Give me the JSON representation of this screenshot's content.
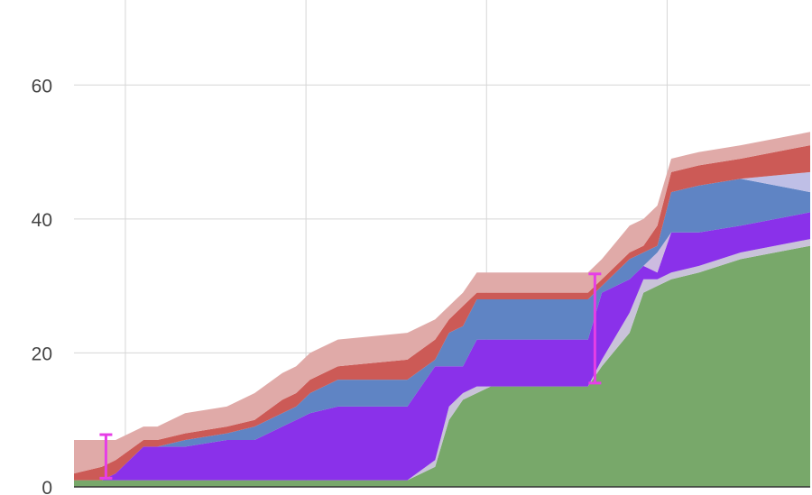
{
  "chart_data": {
    "type": "area",
    "stacked": true,
    "title": "",
    "xlabel": "",
    "ylabel": "",
    "ylim": [
      0,
      70
    ],
    "xlim": [
      0,
      53
    ],
    "grid": true,
    "legend": "none",
    "yticks": [
      {
        "value": 0,
        "label": "0"
      },
      {
        "value": 20,
        "label": "20"
      },
      {
        "value": 40,
        "label": "40"
      },
      {
        "value": 60,
        "label": "60"
      }
    ],
    "vertical_gridlines_x": [
      3.7,
      16.7,
      29.7,
      42.7
    ],
    "x": [
      0,
      2,
      3,
      5,
      6,
      8,
      11,
      13,
      15,
      16,
      17,
      19,
      24,
      26,
      27,
      28,
      29,
      30,
      32,
      37,
      38,
      40,
      41,
      42,
      43,
      45,
      48,
      53
    ],
    "series": [
      {
        "color": "#78a86a",
        "values": [
          1,
          1,
          1,
          1,
          1,
          1,
          1,
          1,
          1,
          1,
          1,
          1,
          1,
          3,
          10,
          13,
          14,
          15,
          15,
          15,
          18,
          23,
          29,
          30,
          31,
          32,
          34,
          36
        ]
      },
      {
        "color": "#c9c3d9",
        "values": [
          0,
          0,
          0,
          0,
          0,
          0,
          0,
          0,
          0,
          0,
          0,
          0,
          0,
          1,
          2,
          1,
          1,
          0,
          0,
          0,
          1,
          3,
          2,
          1,
          1,
          1,
          1,
          1
        ]
      },
      {
        "color": "#8a31ea",
        "values": [
          0,
          0,
          1,
          5,
          5,
          5,
          6,
          6,
          8,
          9,
          10,
          11,
          11,
          14,
          6,
          4,
          7,
          7,
          7,
          7,
          10,
          5,
          2,
          1,
          6,
          5,
          4,
          4
        ]
      },
      {
        "color": "#cdbbe0",
        "values": [
          0,
          0,
          0,
          0,
          0,
          0,
          0,
          0,
          0,
          0,
          0,
          0,
          0,
          0,
          0,
          0,
          0,
          0,
          0,
          0,
          0,
          0,
          0,
          3,
          0,
          0,
          0,
          0
        ]
      },
      {
        "color": "#5f84c4",
        "values": [
          0,
          0,
          0,
          0,
          0,
          1,
          1,
          2,
          2,
          2,
          3,
          4,
          4,
          1,
          5,
          6,
          6,
          6,
          6,
          6,
          1,
          3,
          2,
          1,
          6,
          7,
          7,
          3
        ]
      },
      {
        "color": "#bfbfe6",
        "values": [
          0,
          0,
          0,
          0,
          0,
          0,
          0,
          0,
          0,
          0,
          0,
          0,
          0,
          0,
          0,
          0,
          0,
          0,
          0,
          0,
          0,
          0,
          0,
          0,
          0,
          0,
          0,
          3
        ]
      },
      {
        "color": "#cc5a56",
        "values": [
          1,
          2,
          2,
          1,
          1,
          1,
          1,
          1,
          2,
          2,
          2,
          2,
          3,
          3,
          2,
          3,
          1,
          1,
          1,
          1,
          1,
          1,
          1,
          3,
          3,
          3,
          3,
          4
        ]
      },
      {
        "color": "#e0aaa8",
        "values": [
          5,
          4,
          3,
          2,
          2,
          3,
          3,
          4,
          4,
          4,
          4,
          4,
          4,
          3,
          2,
          2,
          3,
          3,
          3,
          3,
          3,
          4,
          4,
          3,
          2,
          2,
          2,
          2
        ]
      }
    ],
    "error_bars": [
      {
        "x": 2.3,
        "low": 1.3,
        "high": 7.8
      },
      {
        "x": 37.5,
        "low": 15.5,
        "high": 31.8
      }
    ],
    "error_bar_color": "#e63ee6"
  }
}
